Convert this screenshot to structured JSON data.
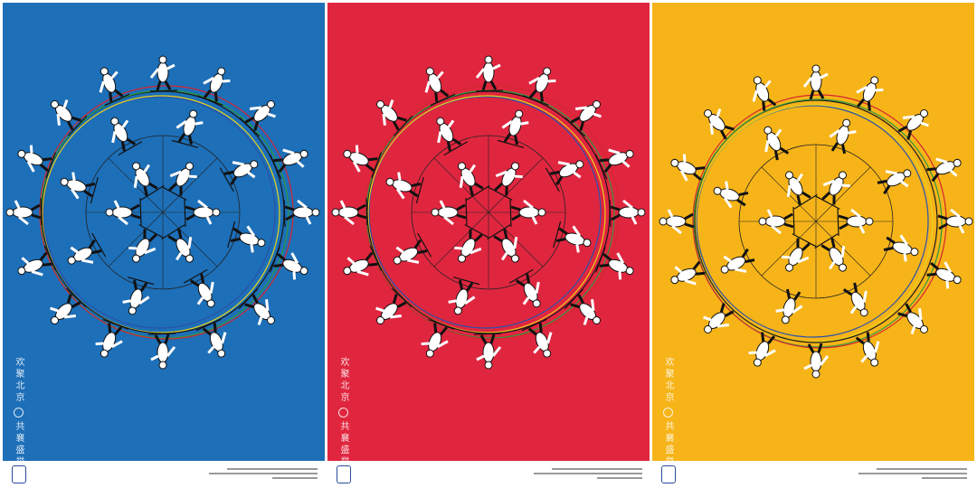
{
  "posters": [
    {
      "slogan_top": "欢聚北京",
      "slogan_bottom": "共襄盛举"
    },
    {
      "slogan_top": "欢聚北京",
      "slogan_bottom": "共襄盛举"
    },
    {
      "slogan_top": "欢聚北京",
      "slogan_bottom": "共襄盛举"
    }
  ]
}
